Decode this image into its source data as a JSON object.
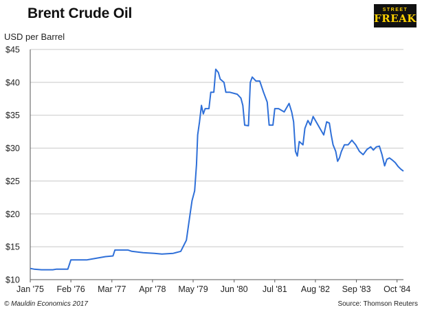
{
  "title": "Brent Crude Oil",
  "brand": {
    "line1": "STREET",
    "line2": "FREAK"
  },
  "unit_label": "USD per Barrel",
  "footer": {
    "copyright": "© Mauldin Economics 2017",
    "source": "Source: Thomson Reuters"
  },
  "colors": {
    "line": "#2e6fd8",
    "grid": "#c8c8c8",
    "axis": "#555555"
  },
  "chart_data": {
    "type": "line",
    "title": "Brent Crude Oil",
    "ylabel": "USD per Barrel",
    "xlabel": "",
    "ylim": [
      10,
      45
    ],
    "xlim": [
      1975.0,
      1984.92
    ],
    "y_ticks": [
      10,
      15,
      20,
      25,
      30,
      35,
      40,
      45
    ],
    "y_tick_labels": [
      "$10",
      "$15",
      "$20",
      "$25",
      "$30",
      "$35",
      "$40",
      "$45"
    ],
    "x_ticks": [
      1975.0,
      1976.08,
      1977.17,
      1978.25,
      1979.33,
      1980.42,
      1981.5,
      1982.58,
      1983.67,
      1984.75
    ],
    "x_tick_labels": [
      "Jan '75",
      "Feb '76",
      "Mar '77",
      "Apr '78",
      "May '79",
      "Jun '80",
      "Jul '81",
      "Aug '82",
      "Sep '83",
      "Oct '84"
    ],
    "grid": true,
    "series": [
      {
        "points": [
          [
            1975.0,
            11.7
          ],
          [
            1975.1,
            11.6
          ],
          [
            1975.3,
            11.5
          ],
          [
            1975.6,
            11.5
          ],
          [
            1975.7,
            11.6
          ],
          [
            1976.0,
            11.6
          ],
          [
            1976.08,
            13.0
          ],
          [
            1976.5,
            13.0
          ],
          [
            1976.7,
            13.2
          ],
          [
            1977.0,
            13.5
          ],
          [
            1977.2,
            13.6
          ],
          [
            1977.25,
            14.5
          ],
          [
            1977.6,
            14.5
          ],
          [
            1977.7,
            14.3
          ],
          [
            1978.0,
            14.1
          ],
          [
            1978.3,
            14.0
          ],
          [
            1978.5,
            13.9
          ],
          [
            1978.8,
            14.0
          ],
          [
            1979.0,
            14.3
          ],
          [
            1979.15,
            16.0
          ],
          [
            1979.2,
            18.0
          ],
          [
            1979.25,
            20.0
          ],
          [
            1979.3,
            22.0
          ],
          [
            1979.37,
            23.5
          ],
          [
            1979.42,
            27.5
          ],
          [
            1979.45,
            32.0
          ],
          [
            1979.5,
            34.0
          ],
          [
            1979.55,
            36.5
          ],
          [
            1979.6,
            35.2
          ],
          [
            1979.65,
            36.0
          ],
          [
            1979.75,
            36.0
          ],
          [
            1979.8,
            38.5
          ],
          [
            1979.88,
            38.5
          ],
          [
            1979.93,
            42.0
          ],
          [
            1980.0,
            41.5
          ],
          [
            1980.05,
            40.5
          ],
          [
            1980.15,
            40.0
          ],
          [
            1980.2,
            38.5
          ],
          [
            1980.3,
            38.5
          ],
          [
            1980.5,
            38.2
          ],
          [
            1980.6,
            37.6
          ],
          [
            1980.65,
            36.5
          ],
          [
            1980.7,
            33.5
          ],
          [
            1980.8,
            33.4
          ],
          [
            1980.85,
            40.0
          ],
          [
            1980.9,
            40.8
          ],
          [
            1980.95,
            40.5
          ],
          [
            1981.0,
            40.2
          ],
          [
            1981.1,
            40.2
          ],
          [
            1981.2,
            38.5
          ],
          [
            1981.3,
            37.0
          ],
          [
            1981.35,
            33.5
          ],
          [
            1981.45,
            33.5
          ],
          [
            1981.5,
            36.0
          ],
          [
            1981.6,
            36.0
          ],
          [
            1981.75,
            35.5
          ],
          [
            1981.88,
            36.8
          ],
          [
            1981.95,
            35.5
          ],
          [
            1982.0,
            34.0
          ],
          [
            1982.05,
            29.5
          ],
          [
            1982.1,
            28.8
          ],
          [
            1982.15,
            31.0
          ],
          [
            1982.25,
            30.5
          ],
          [
            1982.3,
            33.0
          ],
          [
            1982.38,
            34.2
          ],
          [
            1982.45,
            33.5
          ],
          [
            1982.52,
            34.8
          ],
          [
            1982.6,
            34.0
          ],
          [
            1982.7,
            33.0
          ],
          [
            1982.8,
            32.0
          ],
          [
            1982.88,
            34.0
          ],
          [
            1982.95,
            33.8
          ],
          [
            1983.0,
            32.0
          ],
          [
            1983.05,
            30.5
          ],
          [
            1983.12,
            29.5
          ],
          [
            1983.17,
            28.0
          ],
          [
            1983.22,
            28.5
          ],
          [
            1983.27,
            29.5
          ],
          [
            1983.35,
            30.5
          ],
          [
            1983.45,
            30.5
          ],
          [
            1983.55,
            31.2
          ],
          [
            1983.65,
            30.5
          ],
          [
            1983.75,
            29.5
          ],
          [
            1983.85,
            29.0
          ],
          [
            1983.95,
            29.8
          ],
          [
            1984.05,
            30.2
          ],
          [
            1984.12,
            29.7
          ],
          [
            1984.2,
            30.2
          ],
          [
            1984.28,
            30.3
          ],
          [
            1984.35,
            29.0
          ],
          [
            1984.42,
            27.3
          ],
          [
            1984.48,
            28.3
          ],
          [
            1984.55,
            28.5
          ],
          [
            1984.62,
            28.2
          ],
          [
            1984.7,
            27.8
          ],
          [
            1984.78,
            27.2
          ],
          [
            1984.85,
            26.8
          ],
          [
            1984.92,
            26.5
          ]
        ]
      }
    ]
  }
}
